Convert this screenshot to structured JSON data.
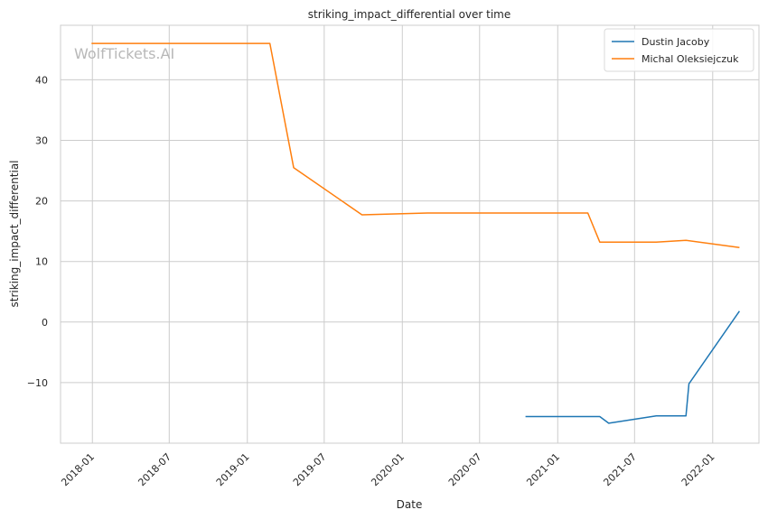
{
  "watermark": "WolfTickets.AI",
  "chart_data": {
    "type": "line",
    "title": "striking_impact_differential over time",
    "xlabel": "Date",
    "ylabel": "striking_impact_differential",
    "xlim": [
      "2017-10-18",
      "2022-04-20"
    ],
    "ylim": [
      -20,
      49
    ],
    "x_ticks": [
      "2018-01",
      "2018-07",
      "2019-01",
      "2019-07",
      "2020-01",
      "2020-07",
      "2021-01",
      "2021-07",
      "2022-01"
    ],
    "y_ticks": [
      -10,
      0,
      10,
      20,
      30,
      40
    ],
    "grid": true,
    "legend_position": "top-right",
    "series": [
      {
        "name": "Dustin Jacoby",
        "color": "#1f77b4",
        "points": [
          {
            "x": "2020-10-17",
            "y": -15.6
          },
          {
            "x": "2021-04-10",
            "y": -15.6
          },
          {
            "x": "2021-05-01",
            "y": -16.7
          },
          {
            "x": "2021-08-21",
            "y": -15.5
          },
          {
            "x": "2021-10-30",
            "y": -15.5
          },
          {
            "x": "2021-11-06",
            "y": -10.2
          },
          {
            "x": "2022-03-05",
            "y": 1.8
          }
        ]
      },
      {
        "name": "Michal Oleksiejczuk",
        "color": "#ff7f0e",
        "points": [
          {
            "x": "2017-12-30",
            "y": 46.0
          },
          {
            "x": "2019-02-23",
            "y": 46.0
          },
          {
            "x": "2019-04-20",
            "y": 25.5
          },
          {
            "x": "2019-09-28",
            "y": 17.7
          },
          {
            "x": "2020-02-29",
            "y": 18.0
          },
          {
            "x": "2021-03-13",
            "y": 18.0
          },
          {
            "x": "2021-04-10",
            "y": 13.2
          },
          {
            "x": "2021-08-21",
            "y": 13.2
          },
          {
            "x": "2021-10-30",
            "y": 13.5
          },
          {
            "x": "2022-03-05",
            "y": 12.3
          }
        ]
      }
    ]
  }
}
